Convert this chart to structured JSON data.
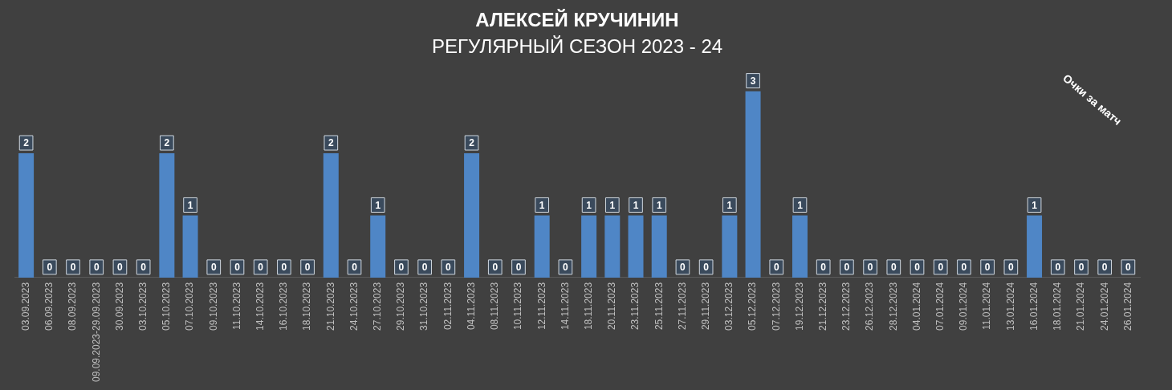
{
  "chart_data": {
    "type": "bar",
    "title": "АЛЕКСЕЙ КРУЧИНИН",
    "subtitle": "РЕГУЛЯРНЫЙ СЕЗОН 2023 - 24",
    "categories": [
      "03.09.2023",
      "06.09.2023",
      "08.09.2023",
      "09.09.2023-29.09.2023",
      "30.09.2023",
      "03.10.2023",
      "05.10.2023",
      "07.10.2023",
      "09.10.2023",
      "11.10.2023",
      "14.10.2023",
      "16.10.2023",
      "18.10.2023",
      "21.10.2023",
      "24.10.2023",
      "27.10.2023",
      "29.10.2023",
      "31.10.2023",
      "02.11.2023",
      "04.11.2023",
      "08.11.2023",
      "10.11.2023",
      "12.11.2023",
      "14.11.2023",
      "18.11.2023",
      "20.11.2023",
      "23.11.2023",
      "25.11.2023",
      "27.11.2023",
      "29.11.2023",
      "03.12.2023",
      "05.12.2023",
      "07.12.2023",
      "19.12.2023",
      "21.12.2023",
      "23.12.2023",
      "26.12.2023",
      "28.12.2023",
      "04.01.2024",
      "07.01.2024",
      "09.01.2024",
      "11.01.2024",
      "13.01.2024",
      "16.01.2024",
      "18.01.2024",
      "21.01.2024",
      "24.01.2024",
      "26.01.2024"
    ],
    "values": [
      2,
      0,
      0,
      0,
      0,
      0,
      2,
      1,
      0,
      0,
      0,
      0,
      0,
      2,
      0,
      1,
      0,
      0,
      0,
      2,
      0,
      0,
      1,
      0,
      1,
      1,
      1,
      1,
      0,
      0,
      1,
      3,
      0,
      1,
      0,
      0,
      0,
      0,
      0,
      0,
      0,
      0,
      0,
      1,
      0,
      0,
      0,
      0
    ],
    "color": "#4f86c6",
    "data_labels": true,
    "grid": false,
    "legend": false,
    "annotations": [
      "Очки за матч"
    ]
  }
}
